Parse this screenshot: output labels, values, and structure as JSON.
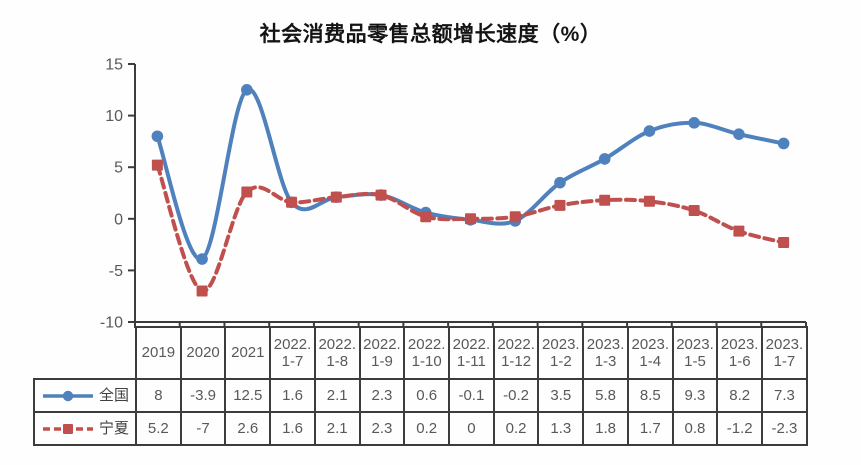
{
  "chart_data": {
    "type": "line",
    "title": "社会消费品零售总额增长速度（%）",
    "categories": [
      "2019",
      "2020",
      "2021",
      "2022.1-7",
      "2022.1-8",
      "2022.1-9",
      "2022.1-10",
      "2022.1-11",
      "2022.1-12",
      "2023.1-2",
      "2023.1-3",
      "2023.1-4",
      "2023.1-5",
      "2023.1-6",
      "2023.1-7"
    ],
    "series": [
      {
        "name": "全国",
        "values": [
          8,
          -3.9,
          12.5,
          1.6,
          2.1,
          2.3,
          0.6,
          -0.1,
          -0.2,
          3.5,
          5.8,
          8.5,
          9.3,
          8.2,
          7.3
        ],
        "color": "#4F81BD",
        "line_style": "solid",
        "marker": "circle"
      },
      {
        "name": "宁夏",
        "values": [
          5.2,
          -7,
          2.6,
          1.6,
          2.1,
          2.3,
          0.2,
          0,
          0.2,
          1.3,
          1.8,
          1.7,
          0.8,
          -1.2,
          -2.3
        ],
        "color": "#C0504D",
        "line_style": "dashed",
        "marker": "square"
      }
    ],
    "y_ticks": [
      15,
      10,
      5,
      0,
      -5,
      -10
    ],
    "ylim": [
      -10,
      15
    ],
    "grid": false,
    "smooth": true,
    "data_table_attached": true,
    "axis_color": "#3c3c3c",
    "tick_label_color": "#595959"
  }
}
